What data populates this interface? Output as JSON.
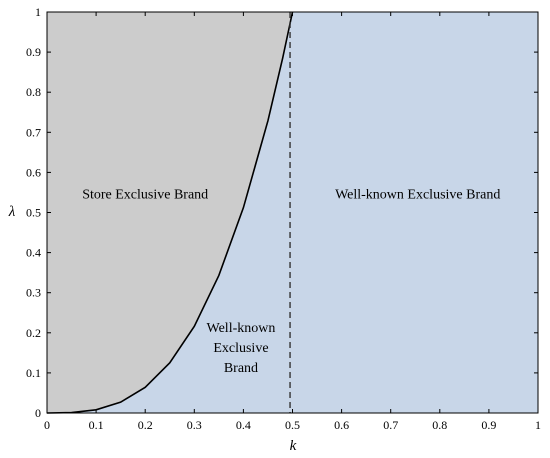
{
  "chart_data": {
    "type": "area",
    "title": "",
    "xlabel": "k",
    "ylabel": "λ",
    "xlim": [
      0,
      1
    ],
    "ylim": [
      0,
      1
    ],
    "xticks": [
      "0",
      "0.1",
      "0.2",
      "0.3",
      "0.4",
      "0.5",
      "0.6",
      "0.7",
      "0.8",
      "0.9",
      "1"
    ],
    "yticks": [
      "0",
      "0.1",
      "0.2",
      "0.3",
      "0.4",
      "0.5",
      "0.6",
      "0.7",
      "0.8",
      "0.9",
      "1"
    ],
    "grid": false,
    "boundary_curve": {
      "x": [
        0.0,
        0.05,
        0.1,
        0.15,
        0.2,
        0.25,
        0.3,
        0.35,
        0.4,
        0.45,
        0.48,
        0.5
      ],
      "y": [
        0.0,
        0.001,
        0.008,
        0.027,
        0.064,
        0.125,
        0.216,
        0.343,
        0.512,
        0.729,
        0.885,
        1.0
      ]
    },
    "vertical_line": {
      "x": 0.495,
      "style": "dashed"
    },
    "regions": [
      {
        "label": "Store Exclusive Brand",
        "color": "#cccccc",
        "label_pos": [
          0.2,
          0.535
        ]
      },
      {
        "label": "Well-known Exclusive Brand",
        "color": "#c8d6e8",
        "label_pos": [
          0.755,
          0.535
        ]
      },
      {
        "label_lines": [
          "Well-known",
          "Exclusive",
          "Brand"
        ],
        "color": "#c8d6e8",
        "label_pos": [
          0.395,
          0.12
        ]
      }
    ]
  }
}
